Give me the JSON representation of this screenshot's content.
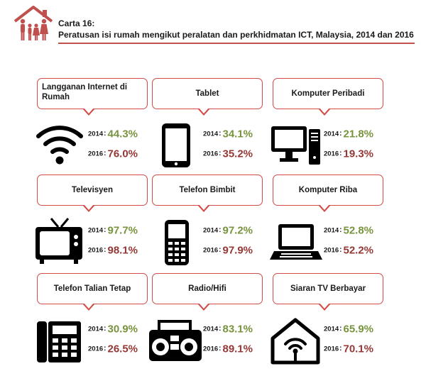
{
  "header": {
    "carta": "Carta 16:",
    "subtitle": "Peratusan isi rumah mengikut peralatan dan perkhidmatan ICT,  Malaysia,  2014 dan  2016"
  },
  "colors": {
    "accent": "#c0504d",
    "year2014": "#77933c",
    "year2016": "#953735"
  },
  "chart_data": {
    "type": "table",
    "title": "Peratusan isi rumah mengikut peralatan dan perkhidmatan ICT,  Malaysia,  2014 dan  2016",
    "series": [
      {
        "name": "2014"
      },
      {
        "name": "2016"
      }
    ],
    "items": [
      {
        "label": "Langganan Internet di Rumah",
        "icon": "wifi-icon",
        "y2014_label": "2014",
        "v2014": "44.3%",
        "y2016_label": "2016",
        "v2016": "76.0%"
      },
      {
        "label": "Tablet",
        "icon": "tablet-icon",
        "y2014_label": "2014",
        "v2014": "34.1%",
        "y2016_label": "2016",
        "v2016": "35.2%"
      },
      {
        "label": "Komputer Peribadi",
        "icon": "desktop-computer-icon",
        "y2014_label": "2014",
        "v2014": "21.8%",
        "y2016_label": "2016",
        "v2016": "19.3%"
      },
      {
        "label": "Televisyen",
        "icon": "television-icon",
        "y2014_label": "2014",
        "v2014": "97.7%",
        "y2016_label": "2016",
        "v2016": "98.1%"
      },
      {
        "label": "Telefon Bimbit",
        "icon": "mobile-phone-icon",
        "y2014_label": "2014",
        "v2014": "97.2%",
        "y2016_label": "2016",
        "v2016": "97.9%"
      },
      {
        "label": "Komputer Riba",
        "icon": "laptop-icon",
        "y2014_label": "2014",
        "v2014": "52.8%",
        "y2016_label": "2016",
        "v2016": "52.2%"
      },
      {
        "label": "Telefon Talian Tetap",
        "icon": "landline-phone-icon",
        "y2014_label": "2014",
        "v2014": "30.9%",
        "y2016_label": "2016",
        "v2016": "26.5%"
      },
      {
        "label": "Radio/Hifi",
        "icon": "radio-icon",
        "y2014_label": "2014",
        "v2014": "83.1%",
        "y2016_label": "2016",
        "v2016": "89.1%"
      },
      {
        "label": "Siaran TV Berbayar",
        "icon": "pay-tv-house-icon",
        "y2014_label": "2014",
        "v2014": "65.9%",
        "y2016_label": "2016",
        "v2016": "70.1%"
      }
    ]
  }
}
